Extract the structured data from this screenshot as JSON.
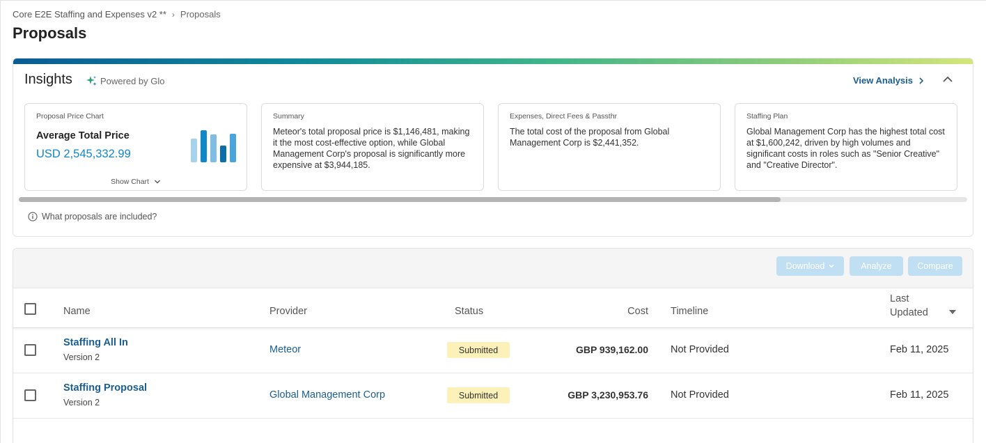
{
  "breadcrumb": {
    "parent": "Core E2E Staffing and Expenses v2 **",
    "separator": "›",
    "current": "Proposals"
  },
  "page": {
    "title": "Proposals"
  },
  "insights": {
    "title": "Insights",
    "powered_by": "Powered by Glo",
    "view_analysis": "View Analysis",
    "cards": [
      {
        "label": "Proposal Price Chart",
        "metric_label": "Average Total Price",
        "metric_value": "USD 2,545,332.99",
        "show_chart": "Show Chart"
      },
      {
        "label": "Summary",
        "text": "Meteor's total proposal price is $1,146,481, making it the most cost-effective option, while Global Management Corp's proposal is significantly more expensive at $3,944,185."
      },
      {
        "label": "Expenses, Direct Fees & Passthr",
        "text": "The total cost of the proposal from Global Management Corp is $2,441,352."
      },
      {
        "label": "Staffing Plan",
        "text": "Global Management Corp has the highest total cost at $1,600,242, driven by high volumes and significant costs in roles such as \"Senior Creative\" and \"Creative Director\"."
      }
    ],
    "included_question": "What proposals are included?"
  },
  "toolbar": {
    "download": "Download",
    "analyze": "Analyze",
    "compare": "Compare"
  },
  "table": {
    "headers": {
      "name": "Name",
      "provider": "Provider",
      "status": "Status",
      "cost": "Cost",
      "timeline": "Timeline",
      "last_updated_line1": "Last",
      "last_updated_line2": "Updated"
    },
    "rows": [
      {
        "name": "Staffing All In",
        "version": "Version 2",
        "provider": "Meteor",
        "status": "Submitted",
        "cost": "GBP 939,162.00",
        "timeline": "Not Provided",
        "last_updated": "Feb 11, 2025"
      },
      {
        "name": "Staffing Proposal",
        "version": "Version 2",
        "provider": "Global Management Corp",
        "status": "Submitted",
        "cost": "GBP 3,230,953.76",
        "timeline": "Not Provided",
        "last_updated": "Feb 11, 2025"
      }
    ]
  },
  "colors": {
    "accent": "#1a5e94",
    "metric": "#1187c8",
    "badge": "#fcf1b8",
    "button_disabled": "#c0dff2"
  },
  "icons": {
    "breadcrumb_separator": "chevron-right-icon",
    "sparkle": "sparkle-icon",
    "view_analysis": "chevron-right-icon",
    "collapse": "chevron-up-icon",
    "show_chart": "chevron-down-icon",
    "info": "info-icon",
    "download_caret": "chevron-down-icon",
    "sort": "sort-desc-icon"
  }
}
